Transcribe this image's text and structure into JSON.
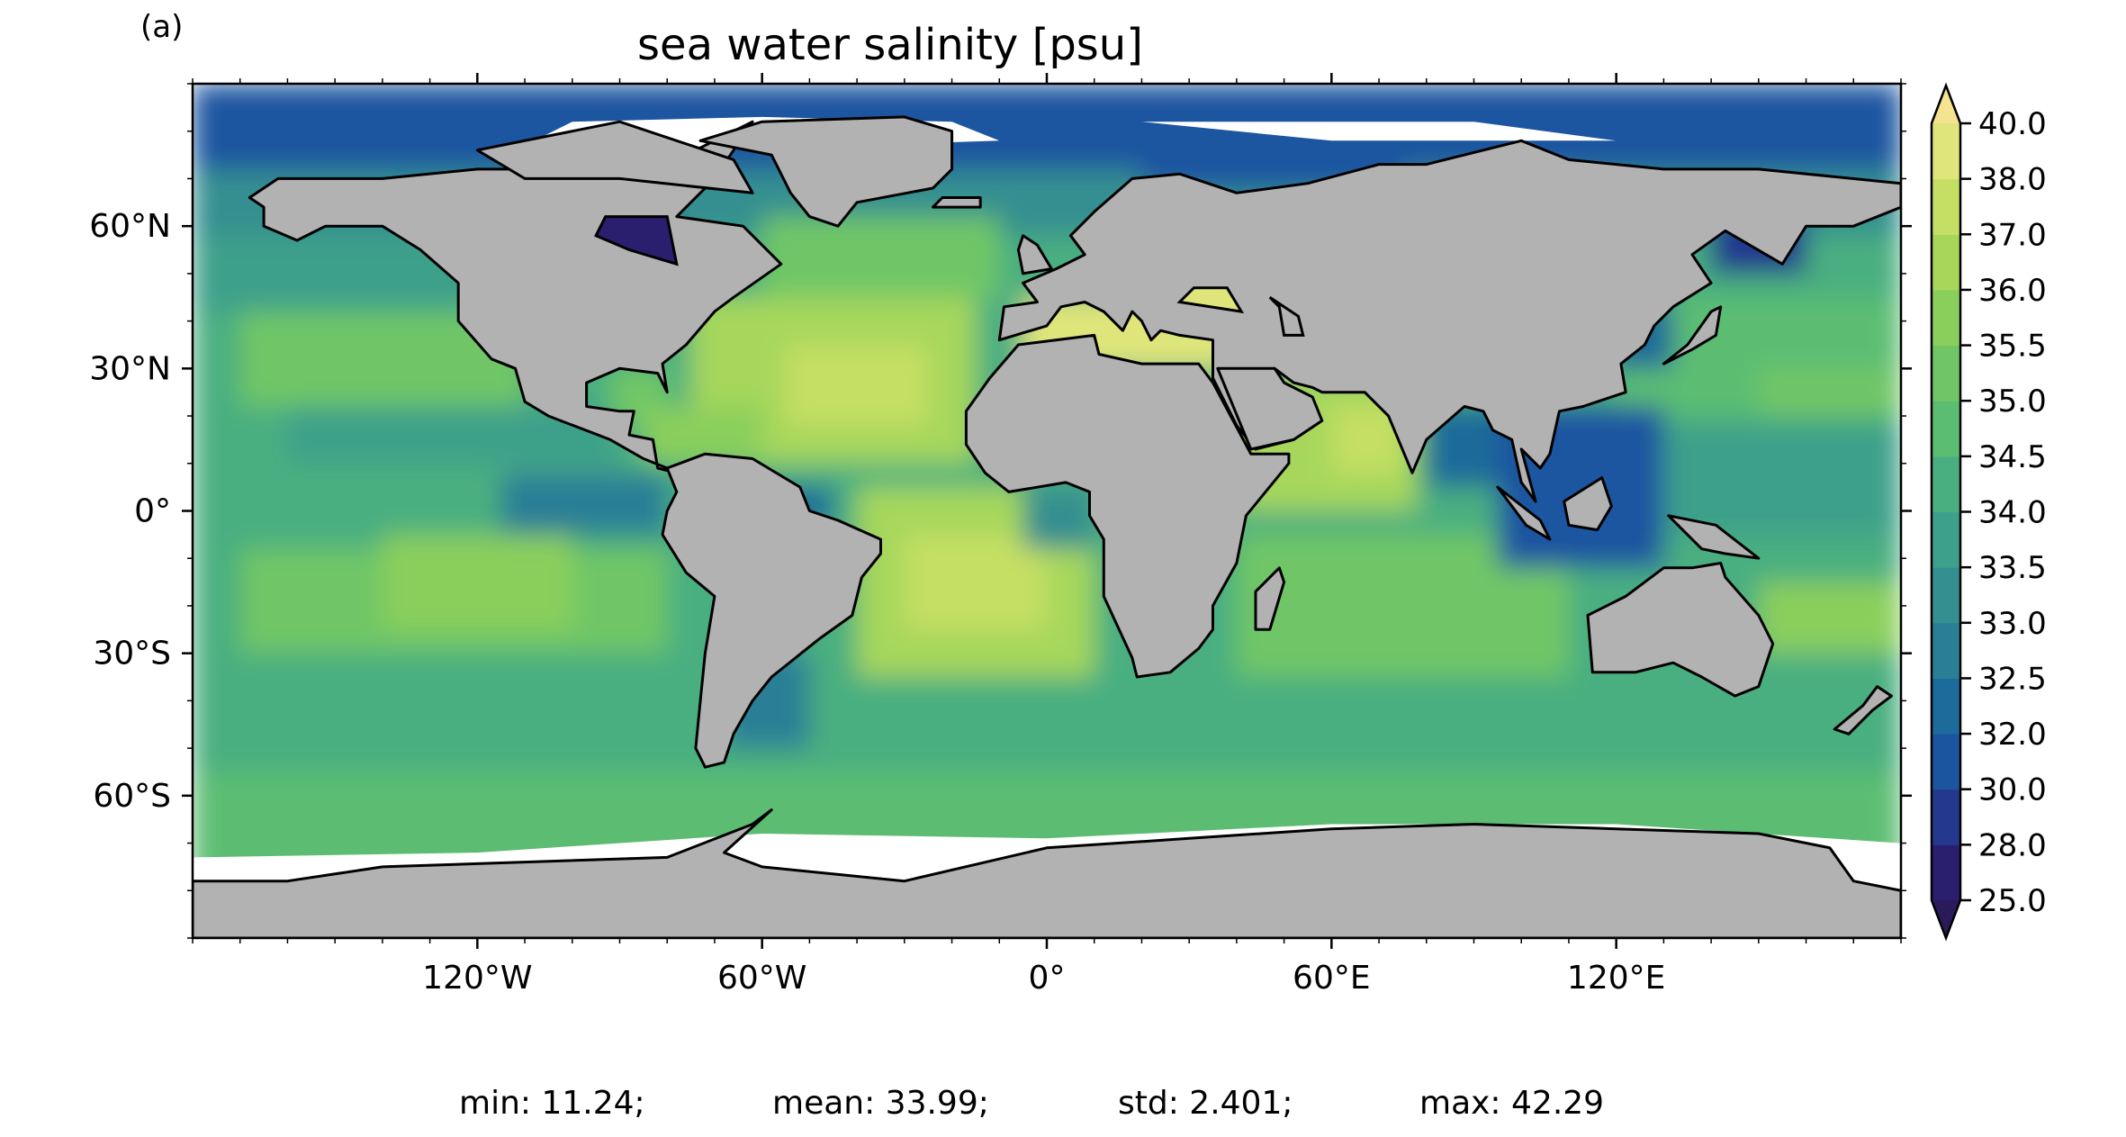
{
  "panel_label": "(a)",
  "title": "sea water salinity [psu]",
  "map": {
    "projection": "PlateCarree",
    "extent": {
      "lon": [
        -180,
        180
      ],
      "lat": [
        -90,
        90
      ]
    },
    "land_color": "#b2b2b2",
    "coastline_color": "#000000",
    "lat_ticks": [
      {
        "value": 60,
        "label": "60°N"
      },
      {
        "value": 30,
        "label": "30°N"
      },
      {
        "value": 0,
        "label": "0°"
      },
      {
        "value": -30,
        "label": "30°S"
      },
      {
        "value": -60,
        "label": "60°S"
      }
    ],
    "lon_ticks": [
      {
        "value": -120,
        "label": "120°W"
      },
      {
        "value": -60,
        "label": "60°W"
      },
      {
        "value": 0,
        "label": "0°"
      },
      {
        "value": 60,
        "label": "60°E"
      },
      {
        "value": 120,
        "label": "120°E"
      }
    ]
  },
  "colorbar": {
    "extend": "both",
    "levels": [
      "25.0",
      "28.0",
      "30.0",
      "32.0",
      "32.5",
      "33.0",
      "33.5",
      "34.0",
      "34.5",
      "35.0",
      "35.5",
      "36.0",
      "37.0",
      "38.0",
      "40.0"
    ],
    "colors": [
      "#2a1f6e",
      "#24398e",
      "#1b55a0",
      "#1d6b9a",
      "#2a7f96",
      "#348f90",
      "#3da08a",
      "#4aaf80",
      "#5bbd72",
      "#70c666",
      "#8acf5c",
      "#a6d75b",
      "#c4df64",
      "#dfe57a"
    ],
    "under_color": "#2b1a5a",
    "over_color": "#f4e38f"
  },
  "chart_data": {
    "type": "heatmap",
    "title": "sea water salinity [psu]",
    "variable_units": "psu",
    "stats": {
      "min": 11.24,
      "mean": 33.99,
      "std": 2.401,
      "max": 42.29
    }
  },
  "stats_text": {
    "min": "min: 11.24;",
    "mean": "mean: 33.99;",
    "std": "std: 2.401;",
    "max": "max: 42.29"
  }
}
